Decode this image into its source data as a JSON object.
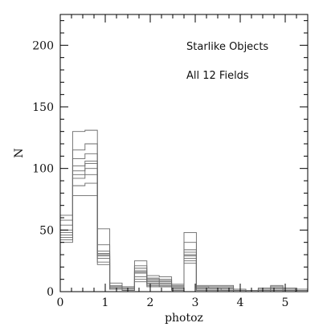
{
  "chart_data": {
    "type": "bar",
    "title": "",
    "xlabel": "photoz",
    "ylabel": "N",
    "xlim": [
      0,
      5.5
    ],
    "ylim": [
      0,
      225
    ],
    "x_ticks": [
      0,
      1,
      2,
      3,
      4,
      5
    ],
    "y_ticks": [
      0,
      50,
      100,
      150,
      200
    ],
    "x_minor_step": 0.25,
    "y_minor_step": 10,
    "grid": false,
    "legend": "none",
    "annotations": [
      "Starlike Objects",
      "All 12 Fields"
    ],
    "bin_edges": [
      0,
      0.275,
      0.55,
      0.825,
      1.1,
      1.375,
      1.65,
      1.925,
      2.2,
      2.475,
      2.75,
      3.025,
      3.3,
      3.575,
      3.85,
      4.125,
      4.4,
      4.675,
      4.95,
      5.225,
      5.5
    ],
    "series": [
      {
        "values": [
          62,
          130,
          131,
          51,
          7,
          4,
          25,
          13,
          12,
          6,
          48,
          5,
          5,
          5,
          2,
          1,
          3,
          5,
          3,
          2
        ]
      },
      {
        "values": [
          58,
          115,
          120,
          38,
          5,
          3,
          21,
          11,
          10,
          5,
          40,
          4,
          4,
          4,
          2,
          1,
          2,
          4,
          2,
          1
        ]
      },
      {
        "values": [
          54,
          108,
          112,
          33,
          4,
          3,
          19,
          10,
          9,
          4,
          34,
          4,
          3,
          3,
          1,
          1,
          2,
          3,
          2,
          1
        ]
      },
      {
        "values": [
          50,
          102,
          106,
          31,
          4,
          2,
          17,
          9,
          8,
          4,
          32,
          3,
          3,
          3,
          1,
          0,
          2,
          3,
          2,
          1
        ]
      },
      {
        "values": [
          48,
          98,
          104,
          30,
          3,
          2,
          16,
          8,
          7,
          3,
          30,
          3,
          3,
          2,
          1,
          0,
          1,
          2,
          1,
          1
        ]
      },
      {
        "values": [
          46,
          95,
          100,
          29,
          3,
          2,
          15,
          7,
          6,
          3,
          29,
          2,
          2,
          2,
          1,
          0,
          1,
          2,
          1,
          0
        ]
      },
      {
        "values": [
          44,
          92,
          95,
          27,
          2,
          1,
          12,
          6,
          5,
          2,
          27,
          2,
          2,
          2,
          0,
          0,
          1,
          1,
          1,
          0
        ]
      },
      {
        "values": [
          42,
          86,
          88,
          24,
          2,
          1,
          10,
          5,
          4,
          2,
          25,
          2,
          2,
          1,
          0,
          0,
          1,
          1,
          1,
          0
        ]
      },
      {
        "values": [
          40,
          78,
          78,
          22,
          2,
          1,
          8,
          4,
          4,
          1,
          23,
          1,
          1,
          1,
          0,
          0,
          0,
          1,
          0,
          0
        ]
      }
    ]
  }
}
